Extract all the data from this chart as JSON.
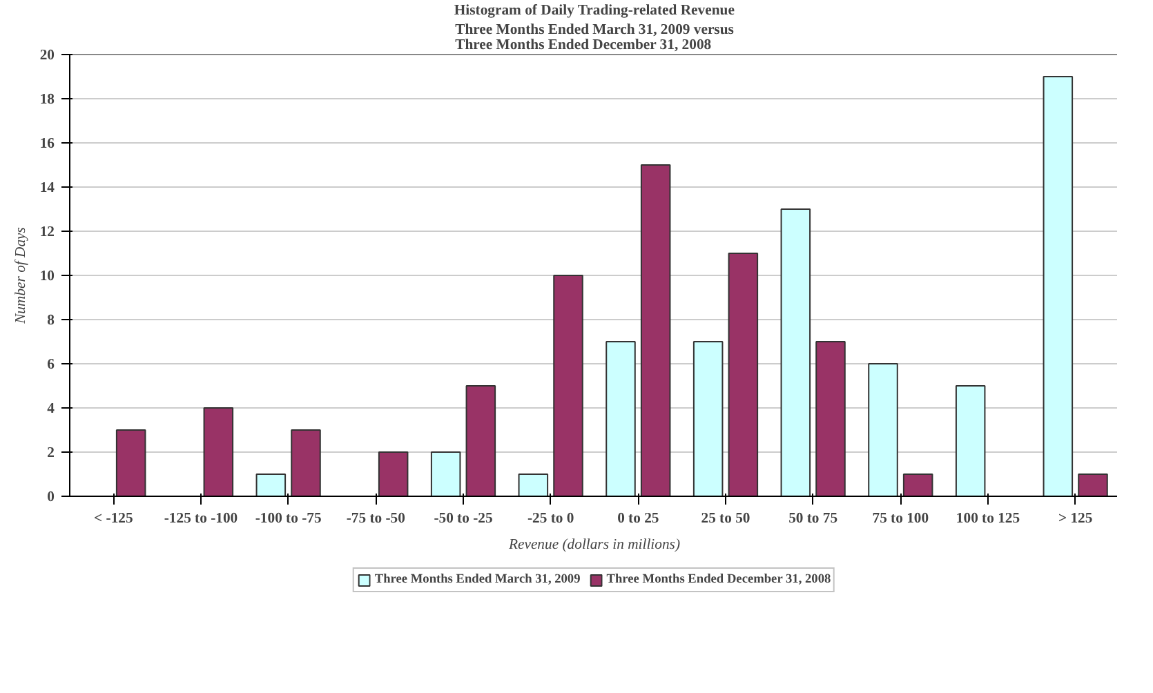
{
  "chart_data": {
    "type": "bar",
    "title": "Histogram of Daily Trading-related Revenue",
    "subtitle": "Three Months Ended March 31, 2009 versus\nThree Months Ended December 31, 2008",
    "xlabel": "Revenue (dollars in millions)",
    "ylabel": "Number of Days",
    "categories": [
      "< -125",
      "-125 to -100",
      "-100 to -75",
      "-75 to -50",
      "-50 to -25",
      "-25 to 0",
      "0 to 25",
      "25 to 50",
      "50 to 75",
      "75 to 100",
      "100 to 125",
      "> 125"
    ],
    "series": [
      {
        "name": "Three Months Ended March 31, 2009",
        "color": "#ccffff",
        "values": [
          0,
          0,
          1,
          0,
          2,
          1,
          7,
          7,
          13,
          6,
          5,
          19
        ]
      },
      {
        "name": "Three Months Ended December 31, 2008",
        "color": "#993366",
        "values": [
          3,
          4,
          3,
          2,
          5,
          10,
          15,
          11,
          7,
          1,
          0,
          1
        ]
      }
    ],
    "ylim": [
      0,
      20
    ],
    "yticks": [
      0,
      2,
      4,
      6,
      8,
      10,
      12,
      14,
      16,
      18,
      20
    ],
    "grid": "y",
    "legend": "bottom"
  }
}
